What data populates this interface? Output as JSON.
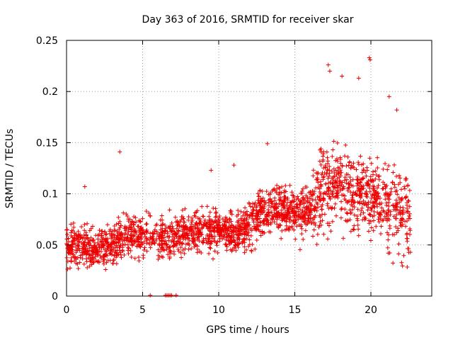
{
  "chart_data": {
    "type": "scatter",
    "title": "Day 363 of 2016, SRMTID for receiver skar",
    "xlabel": "GPS time / hours",
    "ylabel": "SRMTID / TECUs",
    "xlim": [
      0,
      24
    ],
    "ylim": [
      0,
      0.25
    ],
    "xticks": [
      0,
      5,
      10,
      15,
      20
    ],
    "xtick_labels": [
      "0",
      "5",
      "10",
      "15",
      "20"
    ],
    "yticks": [
      0,
      0.05,
      0.1,
      0.15,
      0.2,
      0.25
    ],
    "ytick_labels": [
      "0",
      "0.05",
      "0.1",
      "0.15",
      "0.2",
      "0.25"
    ],
    "grid": true,
    "marker": "+",
    "color": "#ee0000",
    "series": [
      {
        "name": "SRMTID",
        "x_range_hours": [
          0,
          22.6
        ],
        "typical_level_by_hour": [
          [
            0,
            0.05
          ],
          [
            1,
            0.05
          ],
          [
            2,
            0.045
          ],
          [
            3,
            0.05
          ],
          [
            4,
            0.06
          ],
          [
            5,
            0.06
          ],
          [
            6,
            0.055
          ],
          [
            7,
            0.06
          ],
          [
            8,
            0.06
          ],
          [
            9,
            0.065
          ],
          [
            10,
            0.065
          ],
          [
            11,
            0.06
          ],
          [
            12,
            0.07
          ],
          [
            13,
            0.085
          ],
          [
            14,
            0.085
          ],
          [
            15,
            0.08
          ],
          [
            16,
            0.085
          ],
          [
            17,
            0.11
          ],
          [
            18,
            0.11
          ],
          [
            19,
            0.1
          ],
          [
            20,
            0.095
          ],
          [
            21,
            0.09
          ],
          [
            22,
            0.085
          ],
          [
            22.6,
            0.075
          ]
        ],
        "outliers": [
          {
            "x": 1.2,
            "y": 0.107
          },
          {
            "x": 3.5,
            "y": 0.141
          },
          {
            "x": 9.5,
            "y": 0.123
          },
          {
            "x": 11.0,
            "y": 0.128
          },
          {
            "x": 13.2,
            "y": 0.149
          },
          {
            "x": 17.2,
            "y": 0.226
          },
          {
            "x": 17.3,
            "y": 0.22
          },
          {
            "x": 18.1,
            "y": 0.215
          },
          {
            "x": 19.2,
            "y": 0.213
          },
          {
            "x": 19.9,
            "y": 0.233
          },
          {
            "x": 19.95,
            "y": 0.231
          },
          {
            "x": 21.2,
            "y": 0.195
          },
          {
            "x": 21.7,
            "y": 0.182
          }
        ],
        "zero_points_x": [
          5.5,
          6.5,
          6.6,
          6.7,
          6.8,
          6.9,
          7.2
        ]
      }
    ]
  }
}
